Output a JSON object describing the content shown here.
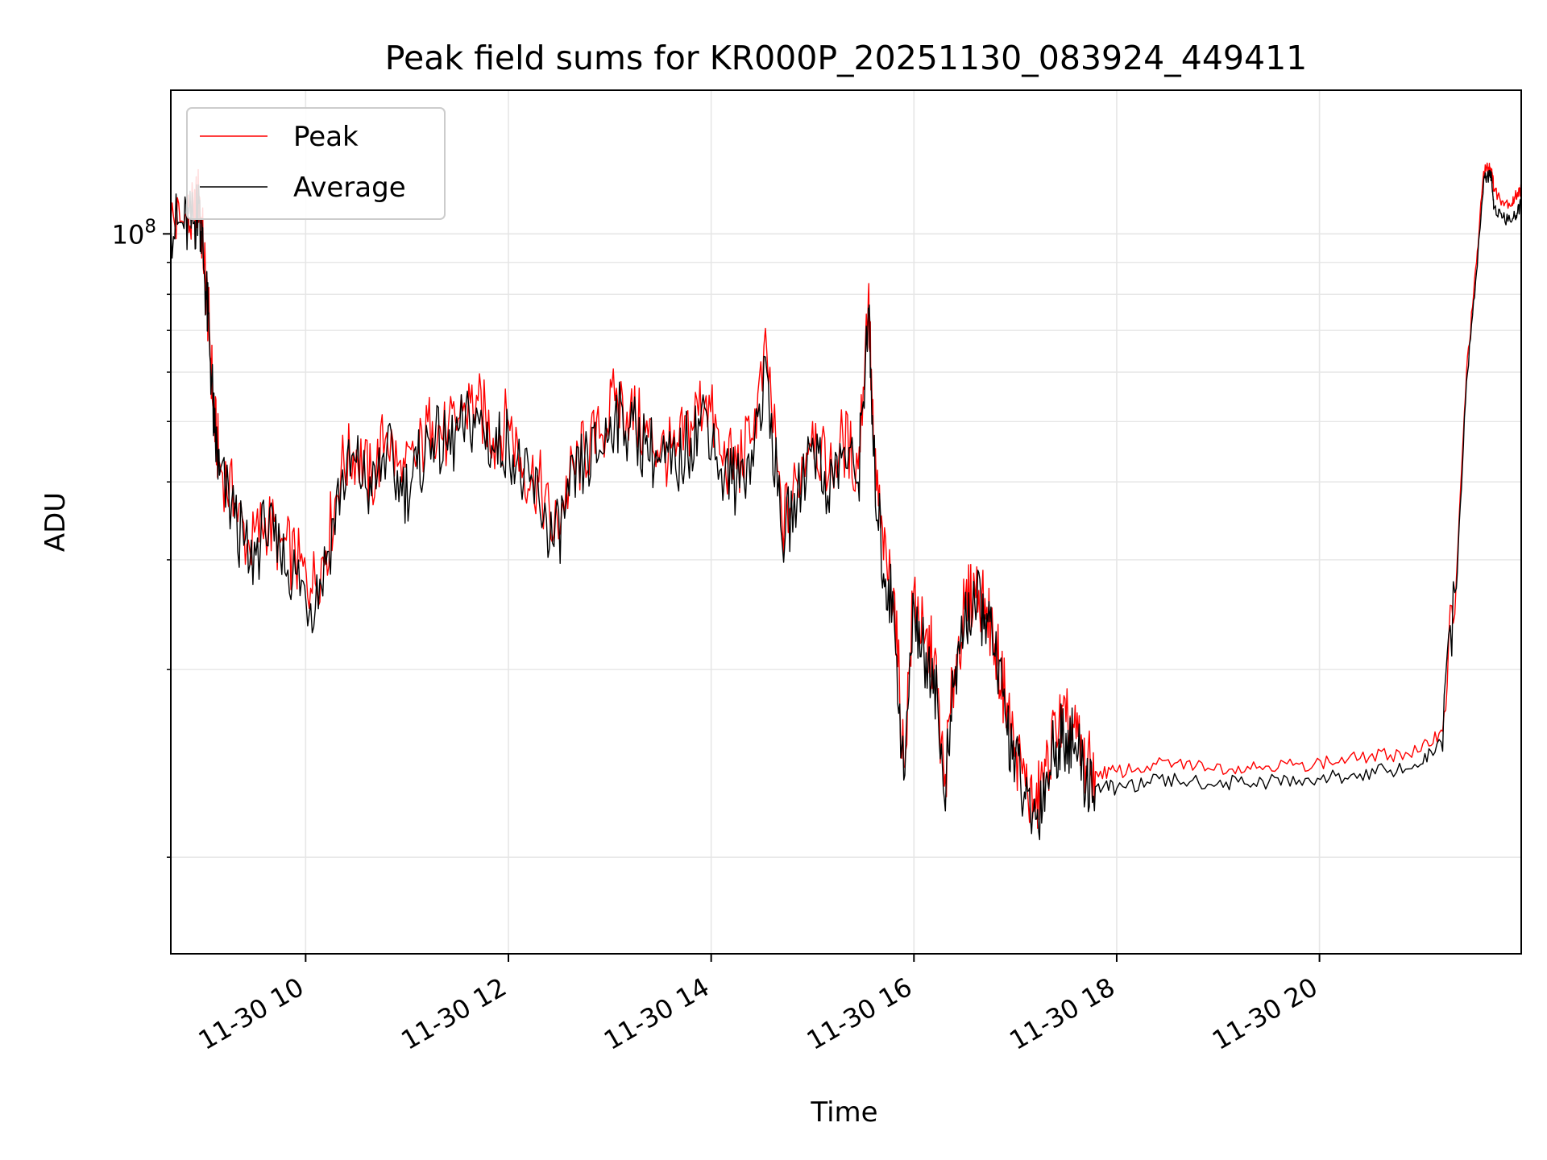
{
  "chart_data": {
    "type": "line",
    "title": "Peak field sums for KR000P_20251130_083924_449411",
    "xlabel": "Time",
    "ylabel": "ADU",
    "yscale": "log",
    "ylim": [
      7000000,
      170000000
    ],
    "xlim_hours": [
      8.67,
      21.99
    ],
    "x_tick_hours": [
      10,
      12,
      14,
      16,
      18,
      20
    ],
    "x_tick_labels": [
      "11-30 10",
      "11-30 12",
      "11-30 14",
      "11-30 16",
      "11-30 18",
      "11-30 20"
    ],
    "y_major_tick_values": [
      100000000
    ],
    "y_major_tick_base": "10",
    "y_major_tick_exp": "8",
    "y_minor_tick_values": [
      10000000,
      20000000,
      30000000,
      40000000,
      50000000,
      60000000,
      70000000,
      80000000,
      90000000
    ],
    "grid": true,
    "legend_position": "upper-left",
    "colors": {
      "peak": "#ff0000",
      "average": "#000000",
      "grid": "#e6e6e6"
    },
    "series": [
      {
        "name": "Peak",
        "color": "#ff0000",
        "x_hours": [
          8.67,
          8.8,
          8.9,
          8.95,
          9.0,
          9.05,
          9.1,
          9.15,
          9.3,
          9.45,
          9.6,
          9.75,
          9.9,
          10.05,
          10.2,
          10.35,
          10.5,
          10.65,
          10.8,
          10.95,
          11.1,
          11.25,
          11.4,
          11.55,
          11.7,
          11.85,
          12.0,
          12.15,
          12.3,
          12.45,
          12.6,
          12.75,
          12.9,
          13.05,
          13.2,
          13.35,
          13.5,
          13.65,
          13.8,
          13.95,
          14.1,
          14.25,
          14.4,
          14.55,
          14.7,
          14.85,
          15.0,
          15.15,
          15.3,
          15.45,
          15.55,
          15.6,
          15.7,
          15.8,
          15.9,
          16.0,
          16.1,
          16.2,
          16.3,
          16.4,
          16.5,
          16.6,
          16.7,
          16.8,
          16.9,
          17.0,
          17.1,
          17.2,
          17.3,
          17.4,
          17.5,
          17.6,
          17.7,
          17.8,
          18.0,
          18.3,
          18.6,
          18.9,
          19.2,
          19.5,
          19.8,
          20.1,
          20.4,
          20.7,
          21.0,
          21.2,
          21.35,
          21.45,
          21.55,
          21.62,
          21.67,
          21.7,
          21.72,
          21.8,
          21.9,
          21.95,
          21.99
        ],
        "values": [
          105000000,
          104000000,
          106000000,
          115000000,
          90000000,
          70000000,
          50000000,
          43000000,
          37000000,
          31000000,
          35000000,
          32000000,
          30000000,
          27000000,
          31000000,
          42000000,
          45000000,
          40000000,
          48000000,
          40000000,
          44000000,
          50000000,
          47000000,
          52000000,
          54000000,
          47000000,
          50000000,
          42000000,
          40000000,
          33000000,
          40000000,
          45000000,
          47000000,
          54000000,
          52000000,
          48000000,
          45000000,
          44000000,
          50000000,
          55000000,
          44000000,
          42000000,
          47000000,
          64000000,
          34000000,
          40000000,
          50000000,
          40000000,
          47000000,
          42000000,
          80000000,
          46000000,
          30000000,
          27000000,
          14000000,
          27000000,
          22000000,
          21000000,
          13000000,
          20000000,
          25000000,
          27000000,
          26000000,
          22000000,
          18000000,
          15000000,
          13000000,
          12000000,
          14000000,
          16000000,
          16500000,
          15500000,
          14000000,
          13700000,
          13700000,
          14000000,
          14200000,
          13900000,
          14000000,
          14000000,
          14100000,
          14200000,
          14400000,
          14600000,
          14800000,
          16000000,
          28000000,
          60000000,
          90000000,
          126000000,
          128000000,
          127000000,
          118000000,
          113000000,
          112000000,
          116000000,
          118000000
        ]
      },
      {
        "name": "Average",
        "color": "#000000",
        "x_hours": [
          8.67,
          8.8,
          8.9,
          8.95,
          9.0,
          9.05,
          9.1,
          9.15,
          9.3,
          9.45,
          9.6,
          9.75,
          9.9,
          10.05,
          10.2,
          10.35,
          10.5,
          10.65,
          10.8,
          10.95,
          11.1,
          11.25,
          11.4,
          11.55,
          11.7,
          11.85,
          12.0,
          12.15,
          12.3,
          12.45,
          12.6,
          12.75,
          12.9,
          13.05,
          13.2,
          13.35,
          13.5,
          13.65,
          13.8,
          13.95,
          14.1,
          14.25,
          14.4,
          14.55,
          14.7,
          14.85,
          15.0,
          15.15,
          15.3,
          15.45,
          15.55,
          15.6,
          15.7,
          15.8,
          15.9,
          16.0,
          16.1,
          16.2,
          16.3,
          16.4,
          16.5,
          16.6,
          16.7,
          16.8,
          16.9,
          17.0,
          17.1,
          17.2,
          17.3,
          17.4,
          17.5,
          17.6,
          17.7,
          17.8,
          18.0,
          18.3,
          18.6,
          18.9,
          19.2,
          19.5,
          19.8,
          20.1,
          20.4,
          20.7,
          21.0,
          21.2,
          21.35,
          21.45,
          21.55,
          21.62,
          21.67,
          21.7,
          21.72,
          21.8,
          21.9,
          21.95,
          21.99
        ],
        "values": [
          103000000,
          102000000,
          104000000,
          112000000,
          87000000,
          68000000,
          48000000,
          41000000,
          35000000,
          29500000,
          33500000,
          30500000,
          28500000,
          25500000,
          29500000,
          40000000,
          43000000,
          38000000,
          45000000,
          38000000,
          42000000,
          47000000,
          45000000,
          49000000,
          51000000,
          45000000,
          47000000,
          40000000,
          38000000,
          31500000,
          38000000,
          43000000,
          45000000,
          51000000,
          49000000,
          46000000,
          43000000,
          42000000,
          47000000,
          52000000,
          42000000,
          40000000,
          45000000,
          60000000,
          32000000,
          38000000,
          47000000,
          38000000,
          45000000,
          40000000,
          76000000,
          44000000,
          28500000,
          25500000,
          13300000,
          25500000,
          21000000,
          20000000,
          12400000,
          19000000,
          24000000,
          25500000,
          24500000,
          21000000,
          17000000,
          14300000,
          12400000,
          11500000,
          13300000,
          15300000,
          15800000,
          14800000,
          13300000,
          13000000,
          12900000,
          13200000,
          13300000,
          13100000,
          13200000,
          13200000,
          13300000,
          13400000,
          13600000,
          13800000,
          14100000,
          15300000,
          27000000,
          58000000,
          87000000,
          122000000,
          124000000,
          123000000,
          110000000,
          106000000,
          105000000,
          108000000,
          112000000
        ]
      }
    ]
  }
}
